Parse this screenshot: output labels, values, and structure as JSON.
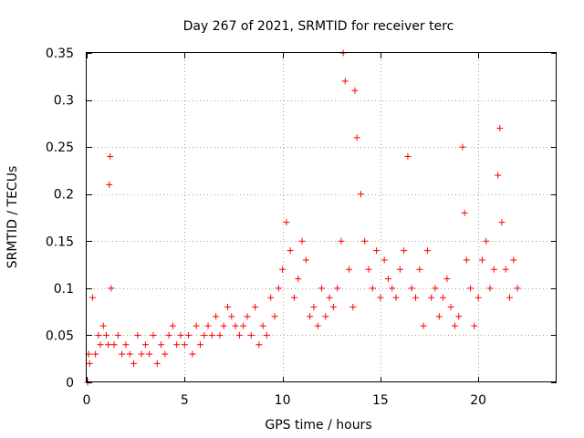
{
  "chart_data": {
    "type": "scatter",
    "title": "Day 267 of 2021, SRMTID for receiver terc",
    "xlabel": "GPS time / hours",
    "ylabel": "SRMTID / TECUs",
    "xlim": [
      0,
      24
    ],
    "ylim": [
      0,
      0.35
    ],
    "xticks": [
      0,
      5,
      10,
      15,
      20
    ],
    "xtick_labels": [
      "0",
      "5",
      "10",
      "15",
      "20"
    ],
    "yticks": [
      0,
      0.05,
      0.1,
      0.15,
      0.2,
      0.25,
      0.3,
      0.35
    ],
    "ytick_labels": [
      "0",
      "0.05",
      "0.1",
      "0.15",
      "0.2",
      "0.25",
      "0.3",
      "0.35"
    ],
    "grid": true,
    "marker": "+",
    "color": "#ff0000",
    "series": [
      {
        "name": "SRMTID",
        "x": [
          0.05,
          0.1,
          0.15,
          0.3,
          0.45,
          0.6,
          0.7,
          0.85,
          1.0,
          1.1,
          1.15,
          1.2,
          1.25,
          1.4,
          1.6,
          1.8,
          2.0,
          2.2,
          2.4,
          2.6,
          2.8,
          3.0,
          3.2,
          3.4,
          3.6,
          3.8,
          4.0,
          4.2,
          4.4,
          4.6,
          4.8,
          5.0,
          5.2,
          5.4,
          5.6,
          5.8,
          6.0,
          6.2,
          6.4,
          6.6,
          6.8,
          7.0,
          7.2,
          7.4,
          7.6,
          7.8,
          8.0,
          8.2,
          8.4,
          8.6,
          8.8,
          9.0,
          9.2,
          9.4,
          9.6,
          9.8,
          10.0,
          10.2,
          10.4,
          10.6,
          10.8,
          11.0,
          11.2,
          11.4,
          11.6,
          11.8,
          12.0,
          12.2,
          12.4,
          12.6,
          12.8,
          13.0,
          13.1,
          13.2,
          13.4,
          13.6,
          13.7,
          13.8,
          14.0,
          14.2,
          14.4,
          14.6,
          14.8,
          15.0,
          15.2,
          15.4,
          15.6,
          15.8,
          16.0,
          16.2,
          16.4,
          16.6,
          16.8,
          17.0,
          17.2,
          17.4,
          17.6,
          17.8,
          18.0,
          18.2,
          18.4,
          18.6,
          18.8,
          19.0,
          19.2,
          19.3,
          19.4,
          19.6,
          19.8,
          20.0,
          20.2,
          20.4,
          20.6,
          20.8,
          21.0,
          21.1,
          21.2,
          21.4,
          21.6,
          21.8,
          22.0
        ],
        "y": [
          0.0,
          0.03,
          0.02,
          0.09,
          0.03,
          0.05,
          0.04,
          0.06,
          0.05,
          0.04,
          0.21,
          0.24,
          0.1,
          0.04,
          0.05,
          0.03,
          0.04,
          0.03,
          0.02,
          0.05,
          0.03,
          0.04,
          0.03,
          0.05,
          0.02,
          0.04,
          0.03,
          0.05,
          0.06,
          0.04,
          0.05,
          0.04,
          0.05,
          0.03,
          0.06,
          0.04,
          0.05,
          0.06,
          0.05,
          0.07,
          0.05,
          0.06,
          0.08,
          0.07,
          0.06,
          0.05,
          0.06,
          0.07,
          0.05,
          0.08,
          0.04,
          0.06,
          0.05,
          0.09,
          0.07,
          0.1,
          0.12,
          0.17,
          0.14,
          0.09,
          0.11,
          0.15,
          0.13,
          0.07,
          0.08,
          0.06,
          0.1,
          0.07,
          0.09,
          0.08,
          0.1,
          0.15,
          0.35,
          0.32,
          0.12,
          0.08,
          0.31,
          0.26,
          0.2,
          0.15,
          0.12,
          0.1,
          0.14,
          0.09,
          0.13,
          0.11,
          0.1,
          0.09,
          0.12,
          0.14,
          0.24,
          0.1,
          0.09,
          0.12,
          0.06,
          0.14,
          0.09,
          0.1,
          0.07,
          0.09,
          0.11,
          0.08,
          0.06,
          0.07,
          0.25,
          0.18,
          0.13,
          0.1,
          0.06,
          0.09,
          0.13,
          0.15,
          0.1,
          0.12,
          0.22,
          0.27,
          0.17,
          0.12,
          0.09,
          0.13,
          0.1
        ]
      }
    ]
  }
}
